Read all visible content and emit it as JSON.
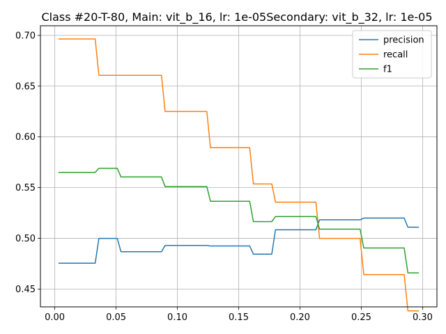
{
  "chart_data": {
    "type": "line",
    "title": "Class #20-T-80, Main: vit_b_16, lr: 1e-05Secondary: vit_b_32, lr: 1e-05",
    "xlabel": "",
    "ylabel": "",
    "xlim": [
      -0.0117,
      0.3117
    ],
    "ylim": [
      0.4325,
      0.7095
    ],
    "xticks": [
      0.0,
      0.05,
      0.1,
      0.15,
      0.2,
      0.25,
      0.3
    ],
    "xtick_labels": [
      "0.00",
      "0.05",
      "0.10",
      "0.15",
      "0.20",
      "0.25",
      "0.30"
    ],
    "yticks": [
      0.45,
      0.5,
      0.55,
      0.6,
      0.65,
      0.7
    ],
    "ytick_labels": [
      "0.45",
      "0.50",
      "0.55",
      "0.60",
      "0.65",
      "0.70"
    ],
    "grid": true,
    "legend_position": "top-right",
    "series": [
      {
        "name": "precision",
        "color": "#1f77b4",
        "points": [
          [
            0.003,
            0.4755
          ],
          [
            0.033,
            0.4755
          ],
          [
            0.036,
            0.5
          ],
          [
            0.051,
            0.5
          ],
          [
            0.054,
            0.4868
          ],
          [
            0.087,
            0.4868
          ],
          [
            0.09,
            0.493
          ],
          [
            0.124,
            0.493
          ],
          [
            0.127,
            0.4925
          ],
          [
            0.159,
            0.4925
          ],
          [
            0.162,
            0.4845
          ],
          [
            0.177,
            0.4845
          ],
          [
            0.18,
            0.5085
          ],
          [
            0.213,
            0.5085
          ],
          [
            0.216,
            0.5183
          ],
          [
            0.249,
            0.5183
          ],
          [
            0.252,
            0.52
          ],
          [
            0.285,
            0.52
          ],
          [
            0.288,
            0.511
          ],
          [
            0.297,
            0.511
          ]
        ]
      },
      {
        "name": "recall",
        "color": "#ff7f0e",
        "points": [
          [
            0.003,
            0.6965
          ],
          [
            0.033,
            0.6965
          ],
          [
            0.036,
            0.6607
          ],
          [
            0.087,
            0.6607
          ],
          [
            0.09,
            0.625
          ],
          [
            0.124,
            0.625
          ],
          [
            0.127,
            0.5893
          ],
          [
            0.159,
            0.5893
          ],
          [
            0.162,
            0.5536
          ],
          [
            0.177,
            0.5536
          ],
          [
            0.18,
            0.5357
          ],
          [
            0.213,
            0.5357
          ],
          [
            0.216,
            0.5
          ],
          [
            0.249,
            0.5
          ],
          [
            0.252,
            0.4643
          ],
          [
            0.285,
            0.4643
          ],
          [
            0.288,
            0.4286
          ],
          [
            0.297,
            0.4286
          ]
        ]
      },
      {
        "name": "f1",
        "color": "#2ca02c",
        "points": [
          [
            0.003,
            0.565
          ],
          [
            0.033,
            0.565
          ],
          [
            0.036,
            0.569
          ],
          [
            0.051,
            0.569
          ],
          [
            0.054,
            0.5605
          ],
          [
            0.087,
            0.5605
          ],
          [
            0.09,
            0.551
          ],
          [
            0.124,
            0.551
          ],
          [
            0.127,
            0.5365
          ],
          [
            0.159,
            0.5365
          ],
          [
            0.162,
            0.5165
          ],
          [
            0.177,
            0.5165
          ],
          [
            0.18,
            0.5215
          ],
          [
            0.213,
            0.5215
          ],
          [
            0.216,
            0.509
          ],
          [
            0.249,
            0.509
          ],
          [
            0.252,
            0.4905
          ],
          [
            0.285,
            0.4905
          ],
          [
            0.288,
            0.466
          ],
          [
            0.297,
            0.466
          ]
        ]
      }
    ]
  }
}
